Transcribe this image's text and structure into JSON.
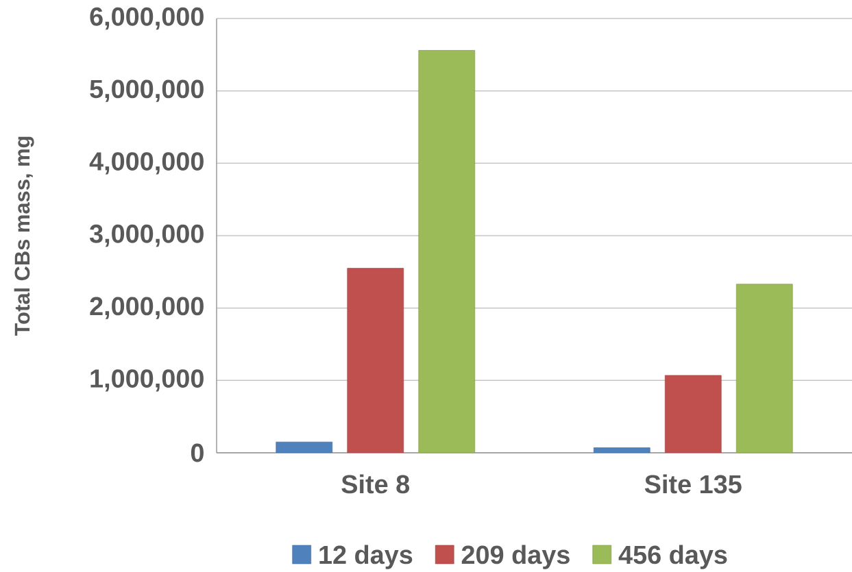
{
  "chart_data": {
    "type": "bar",
    "ylabel": "Total CBs mass, mg",
    "categories": [
      "Site 8",
      "Site 135"
    ],
    "series": [
      {
        "name": "12 days",
        "color": "#4f81bd",
        "values": [
          150000,
          70000
        ]
      },
      {
        "name": "209 days",
        "color": "#c0504d",
        "values": [
          2550000,
          1070000
        ]
      },
      {
        "name": "456 days",
        "color": "#9bbb59",
        "values": [
          5560000,
          2330000
        ]
      }
    ],
    "ylim": [
      0,
      6000000
    ],
    "yticks": [
      {
        "value": 0,
        "label": "0"
      },
      {
        "value": 1000000,
        "label": "1,000,000"
      },
      {
        "value": 2000000,
        "label": "2,000,000"
      },
      {
        "value": 3000000,
        "label": "3,000,000"
      },
      {
        "value": 4000000,
        "label": "4,000,000"
      },
      {
        "value": 5000000,
        "label": "5,000,000"
      },
      {
        "value": 6000000,
        "label": "6,000,000"
      }
    ],
    "grid": "y",
    "legend": "bottom"
  }
}
